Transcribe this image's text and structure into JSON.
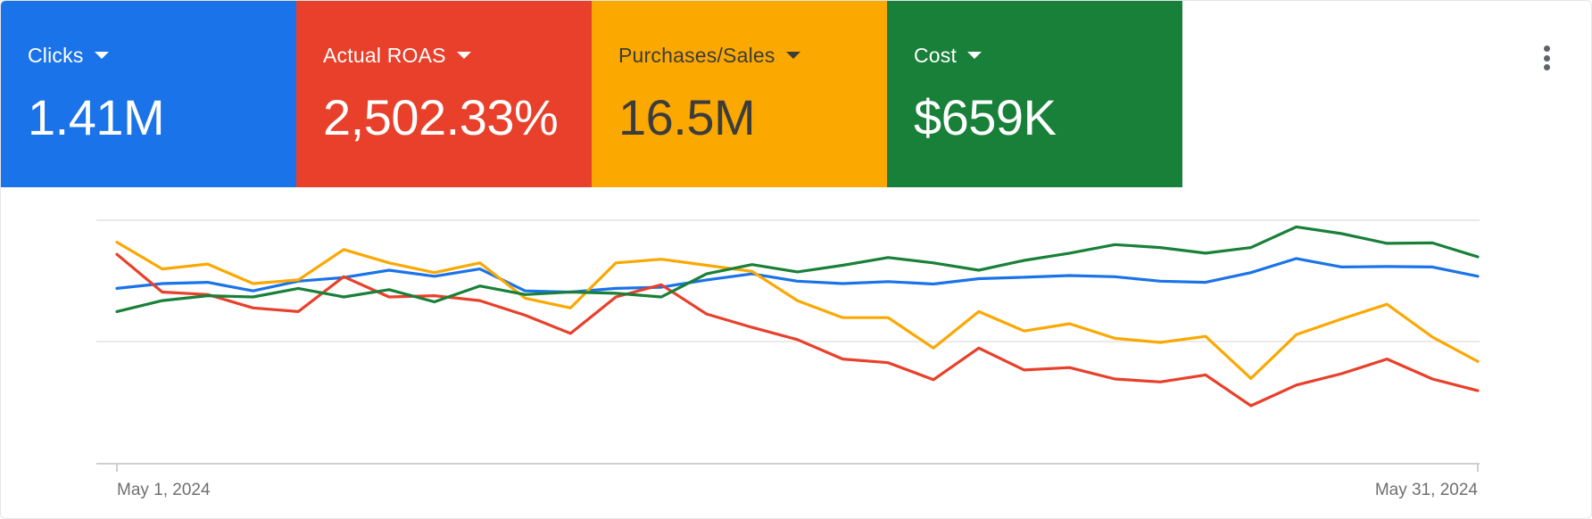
{
  "metrics": [
    {
      "label": "Clicks",
      "value": "1.41M",
      "bg": "#1a73e8",
      "fg": "#ffffff"
    },
    {
      "label": "Actual ROAS",
      "value": "2,502.33%",
      "bg": "#e8402a",
      "fg": "#ffffff"
    },
    {
      "label": "Purchases/Sales",
      "value": "16.5M",
      "bg": "#fba800",
      "fg": "#3c3c3c"
    },
    {
      "label": "Cost",
      "value": "$659K",
      "bg": "#188038",
      "fg": "#ffffff"
    }
  ],
  "menu": {
    "icon": "more-vert-icon"
  },
  "chart_data": {
    "type": "line",
    "x_start_label": "May 1, 2024",
    "x_end_label": "May 31, 2024",
    "x": [
      1,
      2,
      3,
      4,
      5,
      6,
      7,
      8,
      9,
      10,
      11,
      12,
      13,
      14,
      15,
      16,
      17,
      18,
      19,
      20,
      21,
      22,
      23,
      24,
      25,
      26,
      27,
      28,
      29,
      30,
      31
    ],
    "grid": true,
    "gridlines": 3,
    "y_axis_labels": false,
    "legend": "none",
    "ylim": [
      0,
      100
    ],
    "series": [
      {
        "color": "#1a73e8",
        "values": [
          72,
          74,
          74.5,
          71,
          75,
          76.5,
          79.5,
          77,
          80,
          71,
          70.5,
          72,
          72.5,
          75.5,
          78,
          75,
          74,
          74.8,
          73.8,
          76,
          76.6,
          77.3,
          76.8,
          75,
          74.5,
          78.5,
          84.3,
          80.8,
          81,
          80.8,
          77
        ]
      },
      {
        "color": "#e8402a",
        "values": [
          86,
          70.5,
          69.5,
          64,
          62.5,
          76.8,
          68.5,
          69,
          67,
          61,
          53.5,
          68.5,
          73.5,
          61.5,
          56,
          51,
          43,
          41.5,
          34.5,
          47.5,
          38.5,
          39.5,
          34.8,
          33.6,
          36.5,
          23.8,
          32.3,
          37,
          43,
          34.8,
          30
        ]
      },
      {
        "color": "#fba800",
        "values": [
          91,
          80,
          82,
          74,
          75.5,
          88,
          82.5,
          78.5,
          82.5,
          68,
          64,
          82.5,
          84,
          81.5,
          79,
          67,
          60,
          60,
          47.5,
          62.5,
          54.5,
          57.5,
          51.5,
          49.8,
          52.3,
          35,
          53,
          59.5,
          65.5,
          52,
          42
        ]
      },
      {
        "color": "#188038",
        "values": [
          62.5,
          67,
          69,
          68.5,
          72,
          68.5,
          71.5,
          66.5,
          73,
          69.5,
          70.5,
          70,
          68.5,
          78,
          81.8,
          78.8,
          81.5,
          84.7,
          82.5,
          79.5,
          83.5,
          86.5,
          90,
          88.8,
          86.5,
          88.8,
          97.3,
          94.5,
          90.5,
          90.7,
          85
        ]
      }
    ]
  }
}
